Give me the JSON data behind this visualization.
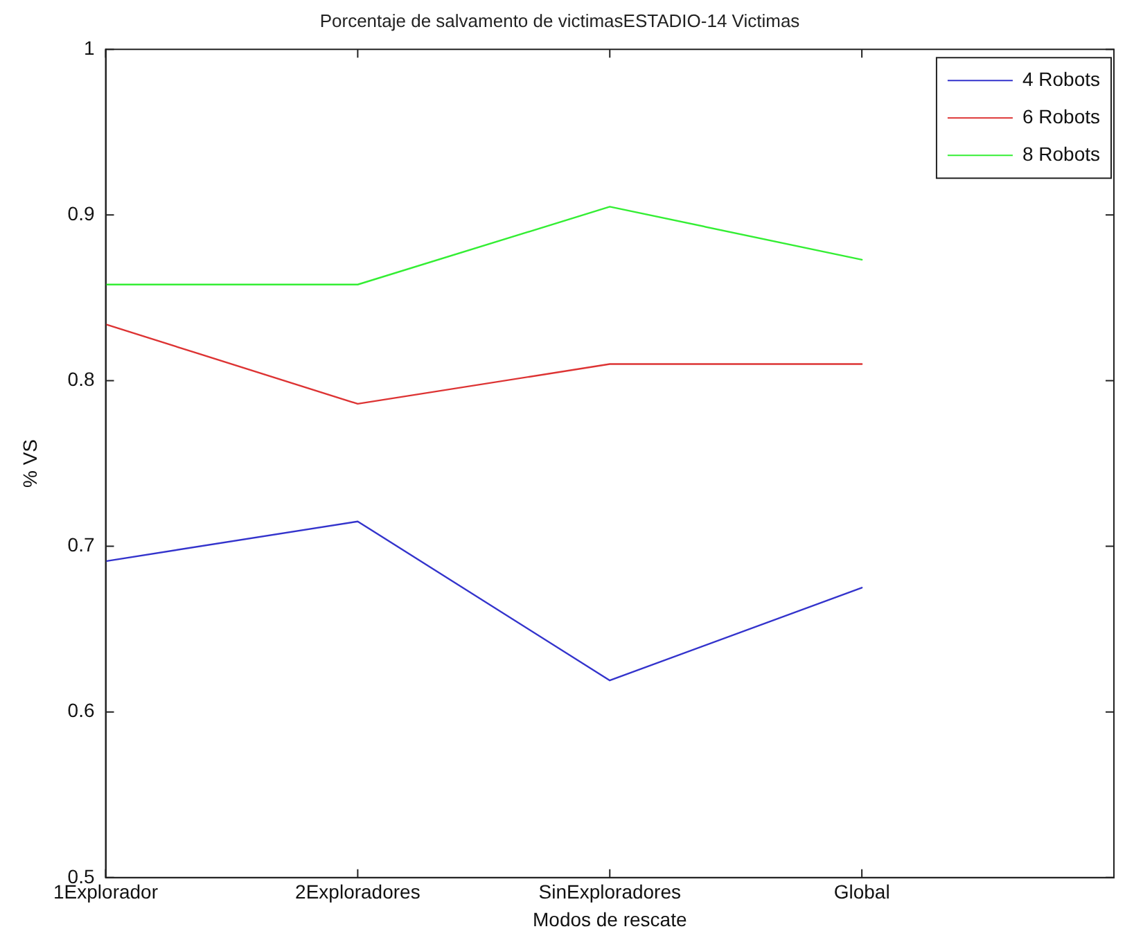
{
  "chart_data": {
    "type": "line",
    "title": "Porcentaje de salvamento de victimasESTADIO-14 Victimas",
    "xlabel": "Modos de rescate",
    "ylabel": "% VS",
    "x": [
      1,
      2,
      3,
      4
    ],
    "xlim": [
      1,
      5
    ],
    "xticks": [
      {
        "value": 1,
        "label": "1Explorador"
      },
      {
        "value": 2,
        "label": "2Exploradores"
      },
      {
        "value": 3,
        "label": "SinExploradores"
      },
      {
        "value": 4,
        "label": "Global"
      }
    ],
    "ylim": [
      0.5,
      1
    ],
    "yticks": [
      0.5,
      0.6,
      0.7,
      0.8,
      0.9,
      1
    ],
    "series": [
      {
        "name": "4 Robots",
        "color": "#3333cc",
        "values": [
          0.691,
          0.715,
          0.619,
          0.675
        ]
      },
      {
        "name": "6 Robots",
        "color": "#dd3333",
        "values": [
          0.834,
          0.786,
          0.81,
          0.81
        ]
      },
      {
        "name": "8 Robots",
        "color": "#33ee33",
        "values": [
          0.858,
          0.858,
          0.905,
          0.873
        ]
      }
    ],
    "grid": false,
    "legend": "top right",
    "marker": "none",
    "line_style": "solid"
  }
}
